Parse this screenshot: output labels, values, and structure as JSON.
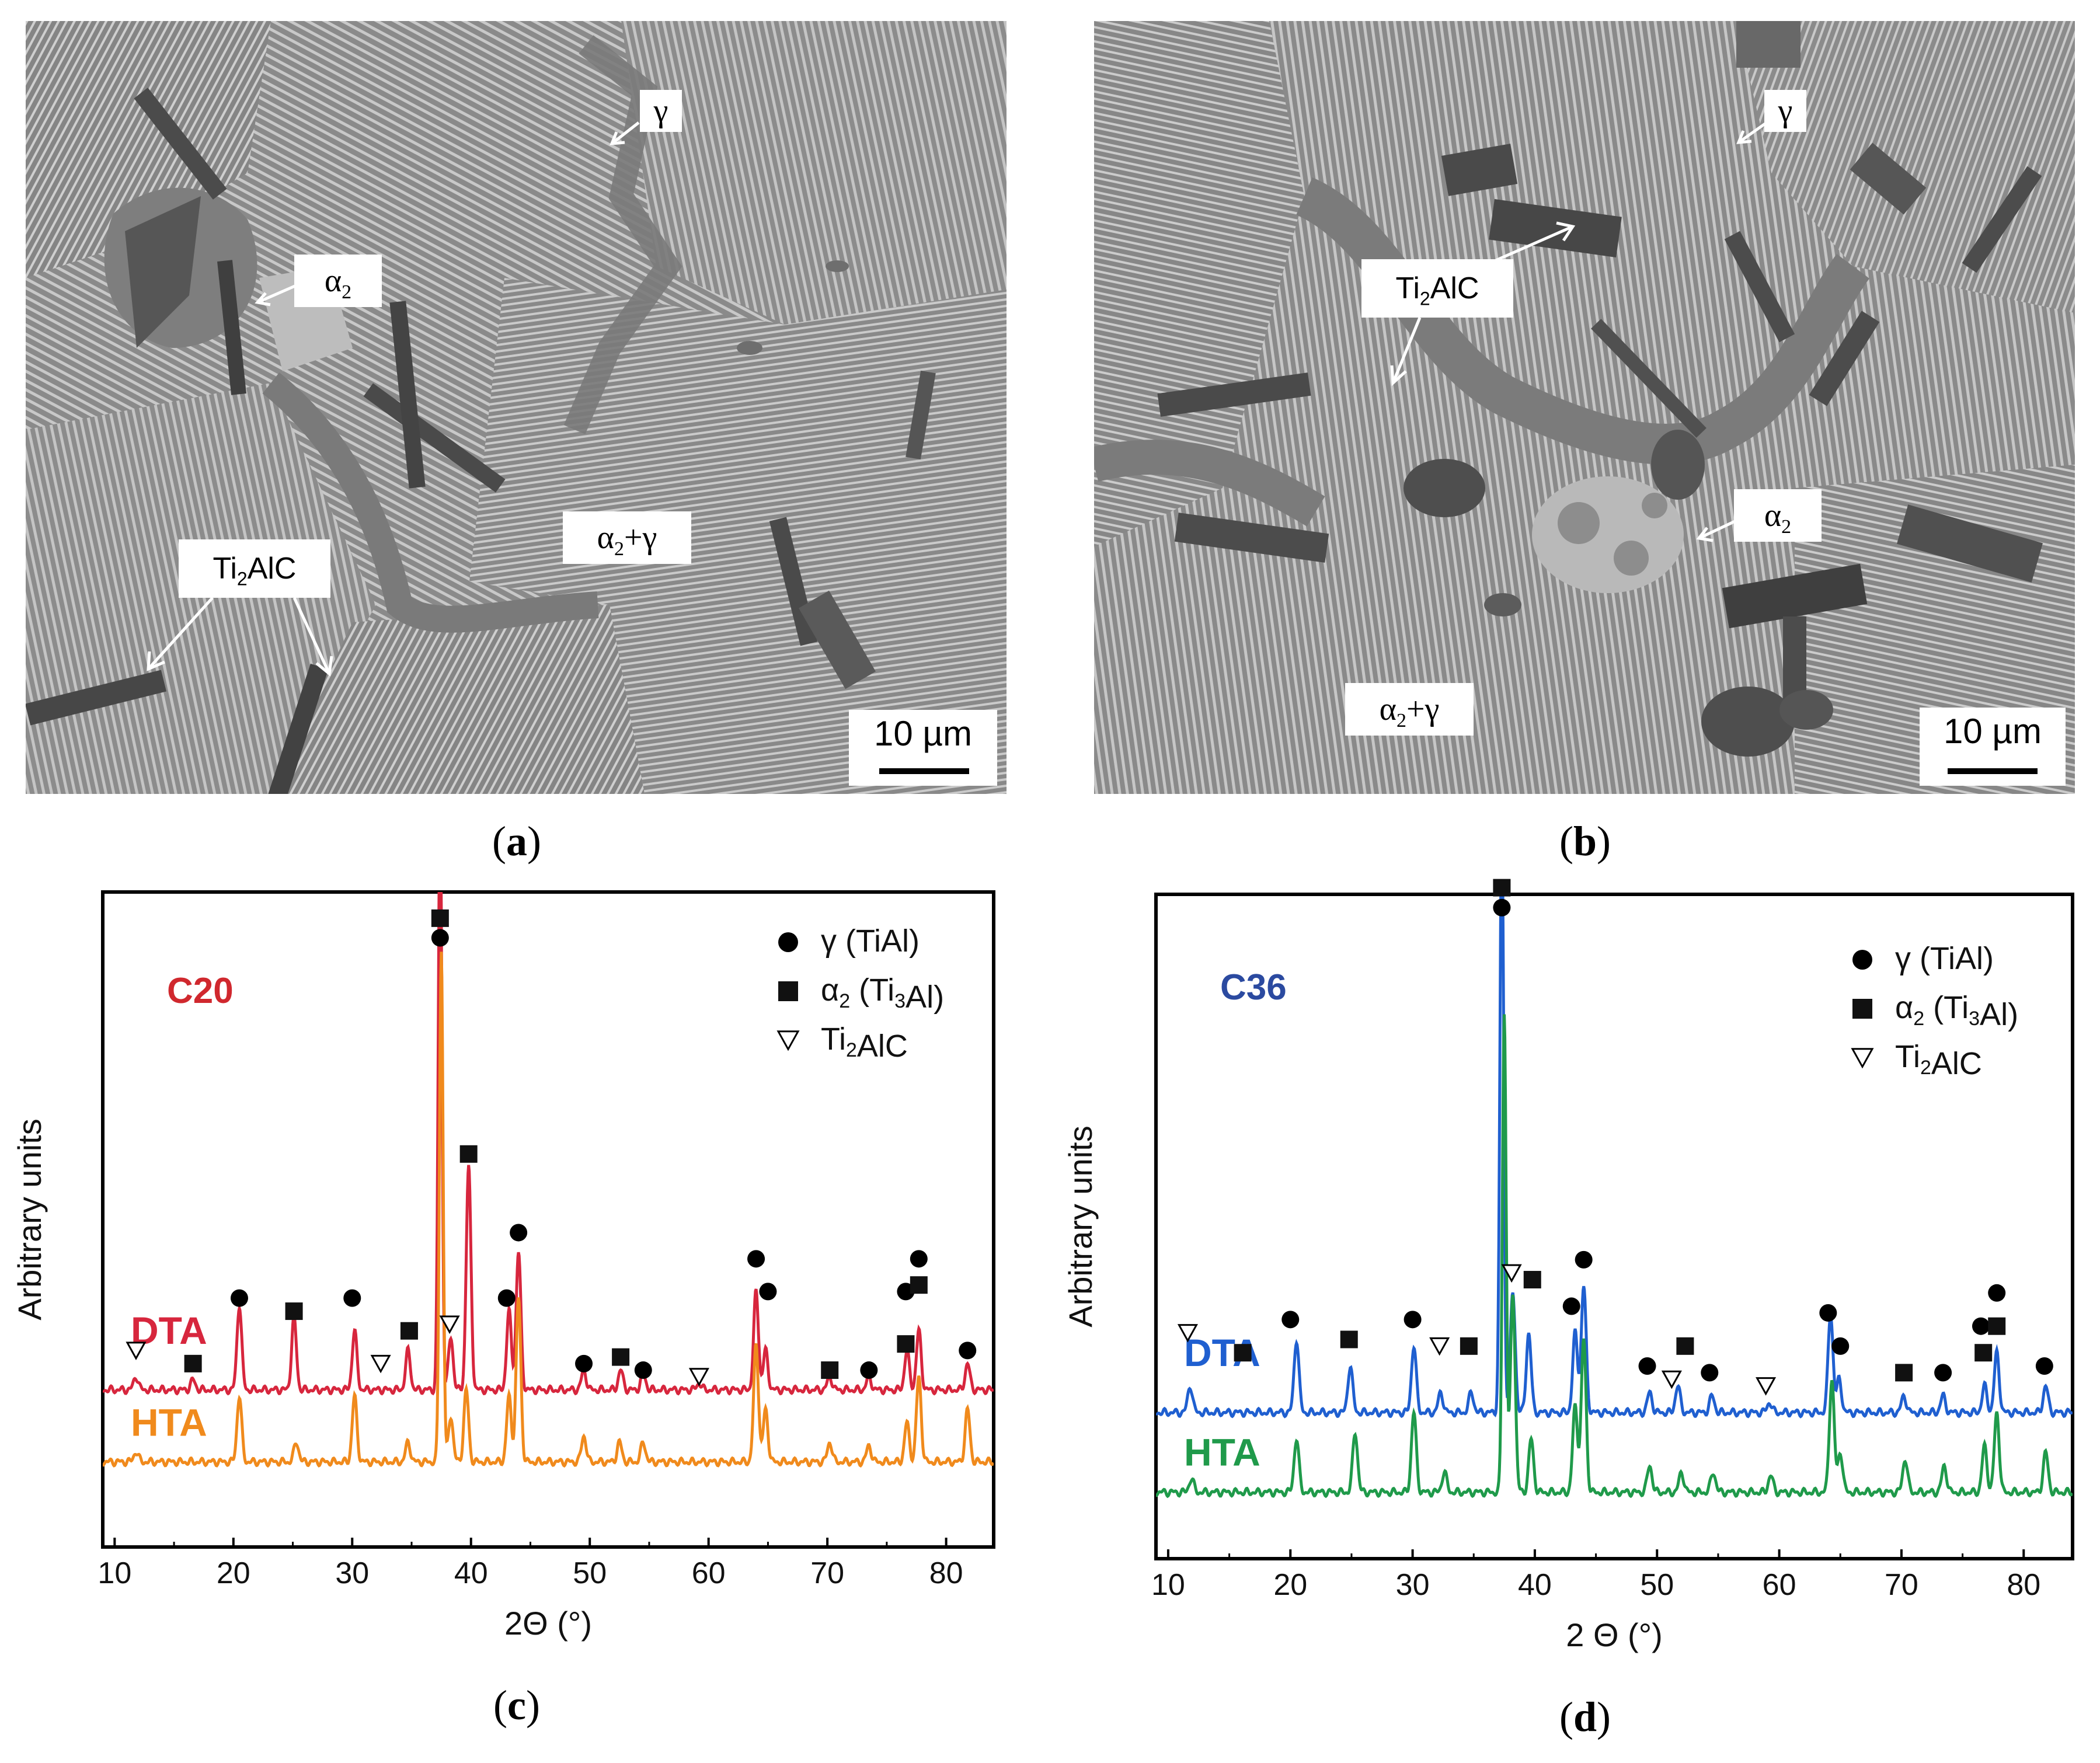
{
  "panels": {
    "a": {
      "caption_open": "(",
      "caption_letter": "a",
      "caption_close": ")",
      "labels": {
        "gamma": "γ",
        "alpha2_base": "α",
        "alpha2_sub": "2",
        "ti2alc_a": "Ti",
        "ti2alc_sub": "2",
        "ti2alc_b": "AlC",
        "alpha2gamma_a": "α",
        "alpha2gamma_sub": "2",
        "alpha2gamma_b": "+γ"
      },
      "scale_bar": "10 µm"
    },
    "b": {
      "caption_open": "(",
      "caption_letter": "b",
      "caption_close": ")",
      "labels": {
        "gamma": "γ",
        "alpha2_base": "α",
        "alpha2_sub": "2",
        "ti2alc_a": "Ti",
        "ti2alc_sub": "2",
        "ti2alc_b": "AlC",
        "alpha2gamma_a": "α",
        "alpha2gamma_sub": "2",
        "alpha2gamma_b": "+γ"
      },
      "scale_bar": "10 µm"
    },
    "c": {
      "caption_open": "(",
      "caption_letter": "c",
      "caption_close": ")"
    },
    "d": {
      "caption_open": "(",
      "caption_letter": "d",
      "caption_close": ")"
    }
  },
  "colors": {
    "c20_dta": "#d7263d",
    "c20_hta": "#f08a1c",
    "c36_dta": "#1f5fd0",
    "c36_hta": "#1f9a4a",
    "c20_title": "#d0282e",
    "c36_title": "#2b4aa0",
    "sem_bg": "#8d8d8d"
  },
  "chart_data": [
    {
      "type": "line",
      "title": "C20",
      "xlabel": "2Θ (°)",
      "ylabel": "Arbitrary units",
      "xlim": [
        9,
        84
      ],
      "ylim": [
        0,
        100
      ],
      "xticks": [
        10,
        20,
        30,
        40,
        50,
        60,
        70,
        80
      ],
      "legend": [
        {
          "marker": "circle",
          "label": "γ (TiAl)",
          "phase": "γ",
          "compound_a": "TiAl",
          "compound_sub": "",
          "compound_b": ""
        },
        {
          "marker": "square",
          "label": "α2 (Ti3Al)",
          "phase": "α",
          "phase_sub": "2",
          "compound_a": "Ti",
          "compound_sub": "3",
          "compound_b": "Al"
        },
        {
          "marker": "triangle",
          "label": "Ti2AlC",
          "phase": "",
          "compound_a": "Ti",
          "compound_sub": "2",
          "compound_b": "AlC"
        }
      ],
      "series": [
        {
          "name": "DTA",
          "baseline": 24,
          "peaks": [
            [
              11.8,
              2
            ],
            [
              16.6,
              1.5
            ],
            [
              20.5,
              13
            ],
            [
              25.1,
              11
            ],
            [
              30.2,
              9
            ],
            [
              34.7,
              6
            ],
            [
              37.4,
              90
            ],
            [
              38.3,
              8
            ],
            [
              39.8,
              34
            ],
            [
              43.2,
              12
            ],
            [
              44.0,
              21
            ],
            [
              49.5,
              3
            ],
            [
              52.6,
              3
            ],
            [
              54.5,
              2.5
            ],
            [
              59.2,
              1
            ],
            [
              64.0,
              15
            ],
            [
              64.8,
              6
            ],
            [
              70.2,
              2
            ],
            [
              73.5,
              2
            ],
            [
              76.7,
              6
            ],
            [
              77.7,
              9
            ],
            [
              81.8,
              4
            ]
          ]
        },
        {
          "name": "HTA",
          "baseline": 13,
          "peaks": [
            [
              11.8,
              1.5
            ],
            [
              20.5,
              10
            ],
            [
              25.3,
              3
            ],
            [
              30.2,
              10
            ],
            [
              34.7,
              3
            ],
            [
              37.5,
              78
            ],
            [
              38.3,
              7
            ],
            [
              39.6,
              11
            ],
            [
              43.2,
              10
            ],
            [
              44.0,
              25
            ],
            [
              49.5,
              4
            ],
            [
              52.5,
              3
            ],
            [
              54.5,
              3
            ],
            [
              64.0,
              18
            ],
            [
              64.8,
              8
            ],
            [
              70.2,
              3
            ],
            [
              73.5,
              2.5
            ],
            [
              76.7,
              6
            ],
            [
              77.7,
              13
            ],
            [
              81.8,
              8
            ]
          ]
        }
      ],
      "peak_markers": [
        {
          "x": 11.8,
          "y": 30,
          "marker": "triangle"
        },
        {
          "x": 16.6,
          "y": 28,
          "marker": "square"
        },
        {
          "x": 20.5,
          "y": 38,
          "marker": "circle"
        },
        {
          "x": 25.1,
          "y": 36,
          "marker": "square"
        },
        {
          "x": 30.0,
          "y": 38,
          "marker": "circle"
        },
        {
          "x": 32.4,
          "y": 28,
          "marker": "triangle"
        },
        {
          "x": 34.8,
          "y": 33,
          "marker": "square"
        },
        {
          "x": 37.4,
          "y": 93,
          "marker": "circle"
        },
        {
          "x": 37.4,
          "y": 96,
          "marker": "square"
        },
        {
          "x": 38.2,
          "y": 34,
          "marker": "triangle"
        },
        {
          "x": 39.8,
          "y": 60,
          "marker": "square"
        },
        {
          "x": 43.0,
          "y": 38,
          "marker": "circle"
        },
        {
          "x": 44.0,
          "y": 48,
          "marker": "circle"
        },
        {
          "x": 49.5,
          "y": 28,
          "marker": "circle"
        },
        {
          "x": 52.6,
          "y": 29,
          "marker": "square"
        },
        {
          "x": 54.5,
          "y": 27,
          "marker": "circle"
        },
        {
          "x": 59.2,
          "y": 26,
          "marker": "triangle"
        },
        {
          "x": 64.0,
          "y": 44,
          "marker": "circle"
        },
        {
          "x": 65.0,
          "y": 39,
          "marker": "circle"
        },
        {
          "x": 70.2,
          "y": 27,
          "marker": "square"
        },
        {
          "x": 73.5,
          "y": 27,
          "marker": "circle"
        },
        {
          "x": 76.6,
          "y": 39,
          "marker": "circle"
        },
        {
          "x": 76.6,
          "y": 31,
          "marker": "square"
        },
        {
          "x": 77.7,
          "y": 44,
          "marker": "circle"
        },
        {
          "x": 77.7,
          "y": 40,
          "marker": "square"
        },
        {
          "x": 81.8,
          "y": 30,
          "marker": "circle"
        }
      ]
    },
    {
      "type": "line",
      "title": "C36",
      "xlabel": "2 Θ (°)",
      "ylabel": "Arbitrary units",
      "xlim": [
        9,
        84
      ],
      "ylim": [
        0,
        100
      ],
      "xticks": [
        10,
        20,
        30,
        40,
        50,
        60,
        70,
        80
      ],
      "legend": [
        {
          "marker": "circle",
          "label": "γ (TiAl)",
          "phase": "γ",
          "compound_a": "TiAl",
          "compound_sub": "",
          "compound_b": ""
        },
        {
          "marker": "square",
          "label": "α2 (Ti3Al)",
          "phase": "α",
          "phase_sub": "2",
          "compound_a": "Ti",
          "compound_sub": "3",
          "compound_b": "Al"
        },
        {
          "marker": "triangle",
          "label": "Ti2AlC",
          "phase": "",
          "compound_a": "Ti",
          "compound_sub": "2",
          "compound_b": "AlC"
        }
      ],
      "series": [
        {
          "name": "DTA",
          "baseline": 22,
          "peaks": [
            [
              11.8,
              4
            ],
            [
              20.5,
              11
            ],
            [
              24.9,
              7
            ],
            [
              30.1,
              10
            ],
            [
              32.3,
              3
            ],
            [
              34.8,
              3
            ],
            [
              37.3,
              90
            ],
            [
              38.2,
              18
            ],
            [
              39.5,
              12
            ],
            [
              43.3,
              12
            ],
            [
              44.0,
              19
            ],
            [
              49.4,
              3
            ],
            [
              51.7,
              4
            ],
            [
              54.5,
              2.5
            ],
            [
              59.2,
              1.5
            ],
            [
              64.2,
              15
            ],
            [
              64.9,
              5
            ],
            [
              70.2,
              2.5
            ],
            [
              73.4,
              2.5
            ],
            [
              76.8,
              4
            ],
            [
              77.8,
              9
            ],
            [
              81.8,
              4
            ]
          ]
        },
        {
          "name": "HTA",
          "baseline": 10,
          "peaks": [
            [
              11.9,
              2
            ],
            [
              20.5,
              8
            ],
            [
              25.3,
              9
            ],
            [
              30.1,
              12
            ],
            [
              32.6,
              3
            ],
            [
              37.5,
              72
            ],
            [
              38.2,
              30
            ],
            [
              39.7,
              8
            ],
            [
              43.3,
              13
            ],
            [
              44.0,
              23
            ],
            [
              49.4,
              4
            ],
            [
              52.0,
              3
            ],
            [
              54.6,
              3
            ],
            [
              59.3,
              2.5
            ],
            [
              64.3,
              17
            ],
            [
              65.0,
              6
            ],
            [
              70.3,
              5
            ],
            [
              73.5,
              4
            ],
            [
              76.8,
              7
            ],
            [
              77.8,
              12
            ],
            [
              81.8,
              6
            ]
          ]
        }
      ],
      "peak_markers": [
        {
          "x": 11.6,
          "y": 34,
          "marker": "triangle"
        },
        {
          "x": 16.1,
          "y": 31,
          "marker": "square"
        },
        {
          "x": 20.0,
          "y": 36,
          "marker": "circle"
        },
        {
          "x": 24.8,
          "y": 33,
          "marker": "square"
        },
        {
          "x": 30.0,
          "y": 36,
          "marker": "circle"
        },
        {
          "x": 32.2,
          "y": 32,
          "marker": "triangle"
        },
        {
          "x": 34.6,
          "y": 32,
          "marker": "square"
        },
        {
          "x": 37.3,
          "y": 98,
          "marker": "circle"
        },
        {
          "x": 37.3,
          "y": 101,
          "marker": "square"
        },
        {
          "x": 38.1,
          "y": 43,
          "marker": "triangle"
        },
        {
          "x": 39.8,
          "y": 42,
          "marker": "square"
        },
        {
          "x": 43.0,
          "y": 38,
          "marker": "circle"
        },
        {
          "x": 44.0,
          "y": 45,
          "marker": "circle"
        },
        {
          "x": 49.2,
          "y": 29,
          "marker": "circle"
        },
        {
          "x": 51.2,
          "y": 27,
          "marker": "triangle"
        },
        {
          "x": 52.3,
          "y": 32,
          "marker": "square"
        },
        {
          "x": 54.3,
          "y": 28,
          "marker": "circle"
        },
        {
          "x": 58.9,
          "y": 26,
          "marker": "triangle"
        },
        {
          "x": 64.0,
          "y": 37,
          "marker": "circle"
        },
        {
          "x": 65.0,
          "y": 32,
          "marker": "circle"
        },
        {
          "x": 70.2,
          "y": 28,
          "marker": "square"
        },
        {
          "x": 73.4,
          "y": 28,
          "marker": "circle"
        },
        {
          "x": 76.5,
          "y": 35,
          "marker": "circle"
        },
        {
          "x": 76.7,
          "y": 31,
          "marker": "square"
        },
        {
          "x": 77.8,
          "y": 40,
          "marker": "circle"
        },
        {
          "x": 77.8,
          "y": 35,
          "marker": "square"
        },
        {
          "x": 81.7,
          "y": 29,
          "marker": "circle"
        }
      ]
    }
  ]
}
